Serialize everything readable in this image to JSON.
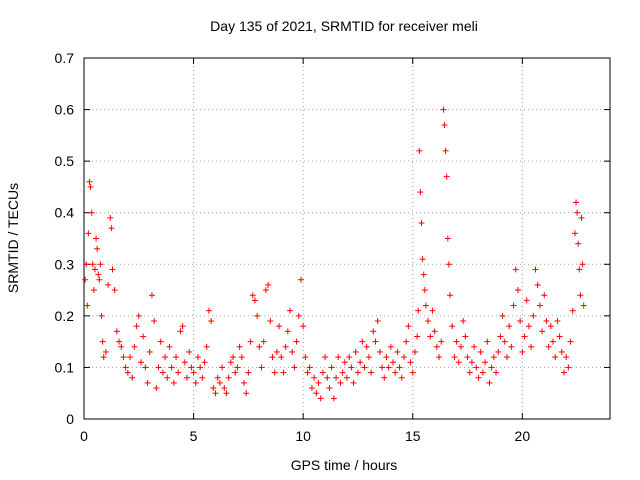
{
  "chart_data": {
    "type": "scatter",
    "title": "Day 135 of 2021, SRMTID for receiver meli",
    "xlabel": "GPS time / hours",
    "ylabel": "SRMTID / TECUs",
    "xlim": [
      0,
      24
    ],
    "ylim": [
      0,
      0.7
    ],
    "xticks": [
      0,
      5,
      10,
      15,
      20
    ],
    "yticks": [
      0,
      0.1,
      0.2,
      0.3,
      0.4,
      0.5,
      0.6,
      0.7
    ],
    "xtick_labels": [
      "0",
      "5",
      "10",
      "15",
      "20"
    ],
    "ytick_labels": [
      "0",
      "0.1",
      "0.2",
      "0.3",
      "0.4",
      "0.5",
      "0.6",
      "0.7"
    ],
    "grid": true,
    "marker": "+",
    "series": [
      {
        "name": "SRMTID",
        "color": "#ff0000",
        "points": [
          [
            0.05,
            0.27
          ],
          [
            0.1,
            0.3
          ],
          [
            0.15,
            0.22
          ],
          [
            0.2,
            0.36
          ],
          [
            0.25,
            0.46
          ],
          [
            0.3,
            0.45
          ],
          [
            0.35,
            0.4
          ],
          [
            0.4,
            0.3
          ],
          [
            0.45,
            0.25
          ],
          [
            0.5,
            0.29
          ],
          [
            0.55,
            0.35
          ],
          [
            0.6,
            0.33
          ],
          [
            0.65,
            0.28
          ],
          [
            0.7,
            0.27
          ],
          [
            0.75,
            0.3
          ],
          [
            0.8,
            0.2
          ],
          [
            0.85,
            0.15
          ],
          [
            0.9,
            0.12
          ],
          [
            1.0,
            0.13
          ],
          [
            1.1,
            0.26
          ],
          [
            1.2,
            0.39
          ],
          [
            1.25,
            0.37
          ],
          [
            1.3,
            0.29
          ],
          [
            1.4,
            0.25
          ],
          [
            1.5,
            0.17
          ],
          [
            1.6,
            0.15
          ],
          [
            1.7,
            0.14
          ],
          [
            1.8,
            0.12
          ],
          [
            1.9,
            0.1
          ],
          [
            2.0,
            0.09
          ],
          [
            2.1,
            0.12
          ],
          [
            2.2,
            0.08
          ],
          [
            2.3,
            0.14
          ],
          [
            2.4,
            0.18
          ],
          [
            2.5,
            0.2
          ],
          [
            2.6,
            0.11
          ],
          [
            2.7,
            0.16
          ],
          [
            2.8,
            0.1
          ],
          [
            2.9,
            0.07
          ],
          [
            3.0,
            0.13
          ],
          [
            3.1,
            0.24
          ],
          [
            3.2,
            0.19
          ],
          [
            3.3,
            0.06
          ],
          [
            3.4,
            0.1
          ],
          [
            3.5,
            0.15
          ],
          [
            3.6,
            0.09
          ],
          [
            3.7,
            0.12
          ],
          [
            3.8,
            0.08
          ],
          [
            3.9,
            0.14
          ],
          [
            4.0,
            0.1
          ],
          [
            4.1,
            0.07
          ],
          [
            4.2,
            0.12
          ],
          [
            4.3,
            0.09
          ],
          [
            4.4,
            0.17
          ],
          [
            4.5,
            0.18
          ],
          [
            4.6,
            0.11
          ],
          [
            4.7,
            0.08
          ],
          [
            4.8,
            0.13
          ],
          [
            4.9,
            0.1
          ],
          [
            5.0,
            0.09
          ],
          [
            5.1,
            0.07
          ],
          [
            5.2,
            0.12
          ],
          [
            5.3,
            0.1
          ],
          [
            5.4,
            0.08
          ],
          [
            5.5,
            0.11
          ],
          [
            5.6,
            0.14
          ],
          [
            5.7,
            0.21
          ],
          [
            5.8,
            0.19
          ],
          [
            5.9,
            0.06
          ],
          [
            6.0,
            0.05
          ],
          [
            6.1,
            0.08
          ],
          [
            6.2,
            0.07
          ],
          [
            6.3,
            0.1
          ],
          [
            6.4,
            0.06
          ],
          [
            6.5,
            0.05
          ],
          [
            6.6,
            0.08
          ],
          [
            6.7,
            0.11
          ],
          [
            6.8,
            0.12
          ],
          [
            6.9,
            0.09
          ],
          [
            7.0,
            0.1
          ],
          [
            7.1,
            0.14
          ],
          [
            7.2,
            0.12
          ],
          [
            7.3,
            0.07
          ],
          [
            7.4,
            0.05
          ],
          [
            7.5,
            0.09
          ],
          [
            7.6,
            0.15
          ],
          [
            7.7,
            0.24
          ],
          [
            7.8,
            0.23
          ],
          [
            7.9,
            0.2
          ],
          [
            8.0,
            0.14
          ],
          [
            8.1,
            0.1
          ],
          [
            8.2,
            0.15
          ],
          [
            8.3,
            0.25
          ],
          [
            8.4,
            0.26
          ],
          [
            8.5,
            0.19
          ],
          [
            8.6,
            0.12
          ],
          [
            8.7,
            0.09
          ],
          [
            8.8,
            0.13
          ],
          [
            8.9,
            0.18
          ],
          [
            9.0,
            0.12
          ],
          [
            9.1,
            0.09
          ],
          [
            9.2,
            0.14
          ],
          [
            9.3,
            0.17
          ],
          [
            9.4,
            0.21
          ],
          [
            9.5,
            0.13
          ],
          [
            9.6,
            0.1
          ],
          [
            9.7,
            0.15
          ],
          [
            9.8,
            0.2
          ],
          [
            9.9,
            0.27
          ],
          [
            10.0,
            0.18
          ],
          [
            10.1,
            0.12
          ],
          [
            10.2,
            0.09
          ],
          [
            10.3,
            0.1
          ],
          [
            10.4,
            0.06
          ],
          [
            10.5,
            0.08
          ],
          [
            10.6,
            0.05
          ],
          [
            10.7,
            0.07
          ],
          [
            10.8,
            0.04
          ],
          [
            10.9,
            0.09
          ],
          [
            11.0,
            0.12
          ],
          [
            11.1,
            0.08
          ],
          [
            11.2,
            0.06
          ],
          [
            11.3,
            0.1
          ],
          [
            11.4,
            0.04
          ],
          [
            11.5,
            0.08
          ],
          [
            11.6,
            0.12
          ],
          [
            11.7,
            0.07
          ],
          [
            11.8,
            0.09
          ],
          [
            11.9,
            0.11
          ],
          [
            12.0,
            0.08
          ],
          [
            12.1,
            0.12
          ],
          [
            12.2,
            0.1
          ],
          [
            12.3,
            0.07
          ],
          [
            12.4,
            0.13
          ],
          [
            12.5,
            0.09
          ],
          [
            12.6,
            0.11
          ],
          [
            12.7,
            0.15
          ],
          [
            12.8,
            0.1
          ],
          [
            12.9,
            0.14
          ],
          [
            13.0,
            0.12
          ],
          [
            13.1,
            0.09
          ],
          [
            13.2,
            0.17
          ],
          [
            13.3,
            0.15
          ],
          [
            13.4,
            0.19
          ],
          [
            13.5,
            0.13
          ],
          [
            13.6,
            0.1
          ],
          [
            13.7,
            0.08
          ],
          [
            13.8,
            0.12
          ],
          [
            13.9,
            0.1
          ],
          [
            14.0,
            0.14
          ],
          [
            14.1,
            0.11
          ],
          [
            14.2,
            0.09
          ],
          [
            14.3,
            0.13
          ],
          [
            14.4,
            0.1
          ],
          [
            14.5,
            0.08
          ],
          [
            14.6,
            0.12
          ],
          [
            14.7,
            0.15
          ],
          [
            14.8,
            0.18
          ],
          [
            14.9,
            0.11
          ],
          [
            15.0,
            0.09
          ],
          [
            15.1,
            0.13
          ],
          [
            15.2,
            0.16
          ],
          [
            15.25,
            0.21
          ],
          [
            15.3,
            0.52
          ],
          [
            15.35,
            0.44
          ],
          [
            15.4,
            0.38
          ],
          [
            15.45,
            0.31
          ],
          [
            15.5,
            0.28
          ],
          [
            15.55,
            0.25
          ],
          [
            15.6,
            0.22
          ],
          [
            15.7,
            0.19
          ],
          [
            15.8,
            0.16
          ],
          [
            15.9,
            0.21
          ],
          [
            16.0,
            0.17
          ],
          [
            16.1,
            0.14
          ],
          [
            16.2,
            0.12
          ],
          [
            16.3,
            0.15
          ],
          [
            16.4,
            0.6
          ],
          [
            16.45,
            0.57
          ],
          [
            16.5,
            0.52
          ],
          [
            16.55,
            0.47
          ],
          [
            16.6,
            0.35
          ],
          [
            16.65,
            0.3
          ],
          [
            16.7,
            0.24
          ],
          [
            16.8,
            0.18
          ],
          [
            16.9,
            0.12
          ],
          [
            17.0,
            0.15
          ],
          [
            17.1,
            0.11
          ],
          [
            17.2,
            0.14
          ],
          [
            17.3,
            0.19
          ],
          [
            17.4,
            0.16
          ],
          [
            17.5,
            0.12
          ],
          [
            17.6,
            0.09
          ],
          [
            17.7,
            0.11
          ],
          [
            17.8,
            0.14
          ],
          [
            17.9,
            0.1
          ],
          [
            18.0,
            0.08
          ],
          [
            18.1,
            0.13
          ],
          [
            18.2,
            0.09
          ],
          [
            18.3,
            0.11
          ],
          [
            18.4,
            0.15
          ],
          [
            18.5,
            0.07
          ],
          [
            18.6,
            0.1
          ],
          [
            18.7,
            0.12
          ],
          [
            18.8,
            0.09
          ],
          [
            18.9,
            0.13
          ],
          [
            19.0,
            0.16
          ],
          [
            19.1,
            0.2
          ],
          [
            19.2,
            0.15
          ],
          [
            19.3,
            0.12
          ],
          [
            19.4,
            0.18
          ],
          [
            19.5,
            0.14
          ],
          [
            19.6,
            0.22
          ],
          [
            19.7,
            0.29
          ],
          [
            19.8,
            0.25
          ],
          [
            19.9,
            0.19
          ],
          [
            20.0,
            0.13
          ],
          [
            20.1,
            0.16
          ],
          [
            20.2,
            0.23
          ],
          [
            20.3,
            0.18
          ],
          [
            20.4,
            0.14
          ],
          [
            20.5,
            0.2
          ],
          [
            20.6,
            0.29
          ],
          [
            20.7,
            0.26
          ],
          [
            20.8,
            0.22
          ],
          [
            20.9,
            0.17
          ],
          [
            21.0,
            0.24
          ],
          [
            21.1,
            0.19
          ],
          [
            21.2,
            0.14
          ],
          [
            21.3,
            0.18
          ],
          [
            21.4,
            0.15
          ],
          [
            21.5,
            0.12
          ],
          [
            21.6,
            0.19
          ],
          [
            21.7,
            0.16
          ],
          [
            21.8,
            0.13
          ],
          [
            21.9,
            0.09
          ],
          [
            22.0,
            0.12
          ],
          [
            22.1,
            0.1
          ],
          [
            22.2,
            0.15
          ],
          [
            22.3,
            0.21
          ],
          [
            22.4,
            0.36
          ],
          [
            22.45,
            0.42
          ],
          [
            22.5,
            0.4
          ],
          [
            22.55,
            0.34
          ],
          [
            22.6,
            0.29
          ],
          [
            22.65,
            0.24
          ],
          [
            22.7,
            0.39
          ],
          [
            22.75,
            0.3
          ],
          [
            22.8,
            0.22
          ]
        ]
      }
    ]
  }
}
